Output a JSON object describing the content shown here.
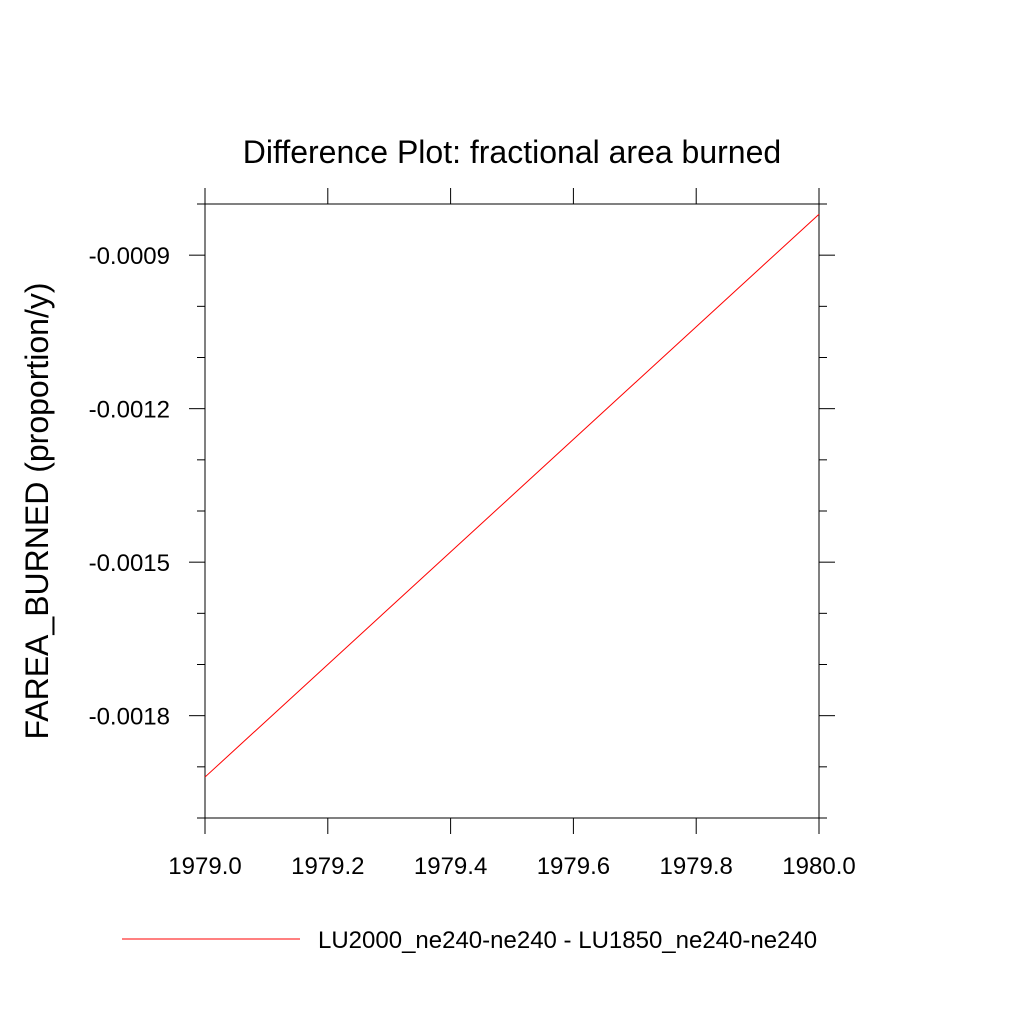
{
  "chart_data": {
    "type": "line",
    "title": "Difference Plot: fractional area burned",
    "xlabel": "",
    "ylabel": "FAREA_BURNED  (proportion/y)",
    "xlim": [
      1979.0,
      1980.0
    ],
    "ylim": [
      -0.002,
      -0.0008
    ],
    "x_ticks": [
      "1979.0",
      "1979.2",
      "1979.4",
      "1979.6",
      "1979.8",
      "1980.0"
    ],
    "y_ticks": [
      "-0.0009",
      "-0.0012",
      "-0.0015",
      "-0.0018"
    ],
    "series": [
      {
        "name": "LU2000_ne240-ne240 - LU1850_ne240-ne240",
        "color": "#ff0000",
        "x": [
          1979.0,
          1980.0
        ],
        "y": [
          -0.00192,
          -0.00082
        ]
      }
    ],
    "legend_position": "bottom",
    "grid": false
  }
}
